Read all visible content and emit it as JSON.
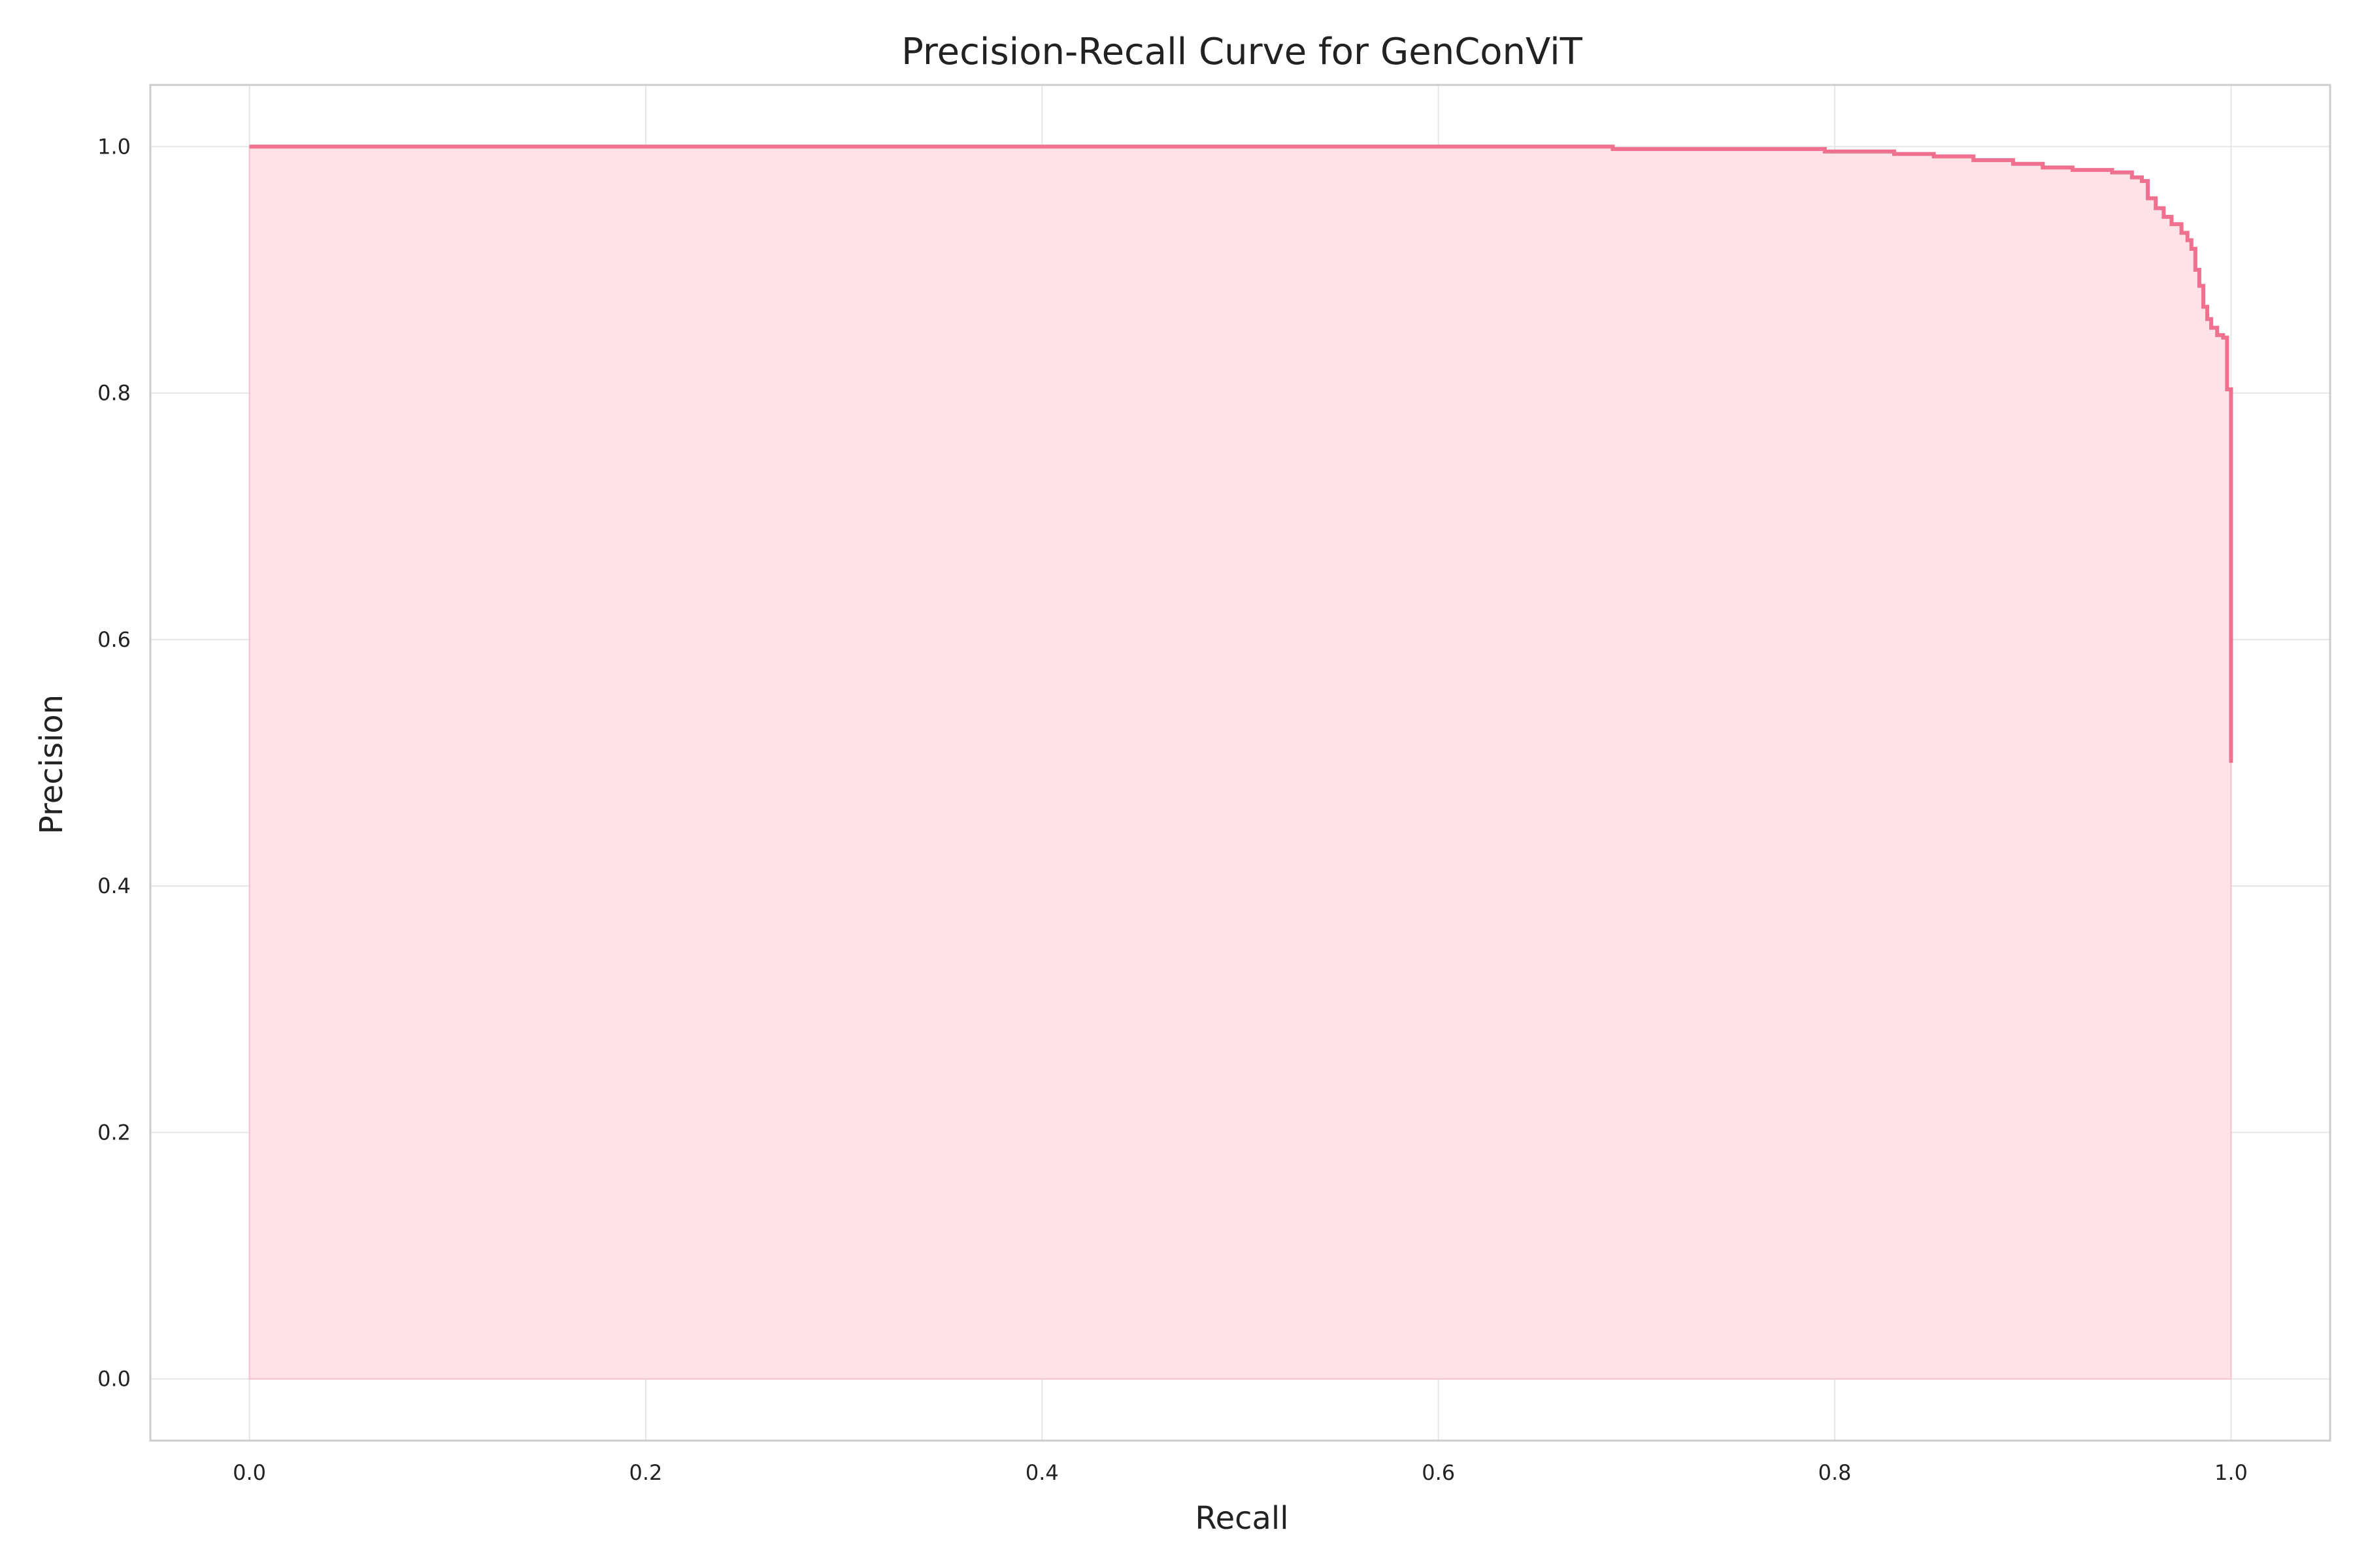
{
  "chart_data": {
    "type": "area",
    "title": "Precision-Recall Curve for GenConViT",
    "xlabel": "Recall",
    "ylabel": "Precision",
    "xlim": [
      -0.05,
      1.05
    ],
    "ylim": [
      -0.05,
      1.05
    ],
    "x_ticks": [
      0.0,
      0.2,
      0.4,
      0.6,
      0.8,
      1.0
    ],
    "x_tick_labels": [
      "0.0",
      "0.2",
      "0.4",
      "0.6",
      "0.8",
      "1.0"
    ],
    "y_ticks": [
      0.0,
      0.2,
      0.4,
      0.6,
      0.8,
      1.0
    ],
    "y_tick_labels": [
      "0.0",
      "0.2",
      "0.4",
      "0.6",
      "0.8",
      "1.0"
    ],
    "grid": true,
    "step": "post",
    "line_color": "#f07090",
    "fill_color": "#fde0e6",
    "series": [
      {
        "recall": [
          0.0,
          0.688,
          0.795,
          0.83,
          0.85,
          0.87,
          0.89,
          0.905,
          0.92,
          0.94,
          0.95,
          0.955,
          0.958,
          0.962,
          0.966,
          0.97,
          0.975,
          0.978,
          0.98,
          0.982,
          0.984,
          0.986,
          0.988,
          0.99,
          0.993,
          0.996,
          0.998,
          1.0,
          1.0
        ],
        "precision": [
          1.0,
          0.998,
          0.996,
          0.994,
          0.992,
          0.989,
          0.986,
          0.983,
          0.981,
          0.979,
          0.975,
          0.972,
          0.958,
          0.95,
          0.943,
          0.937,
          0.93,
          0.924,
          0.917,
          0.9,
          0.887,
          0.87,
          0.86,
          0.853,
          0.847,
          0.845,
          0.803,
          0.8,
          0.5
        ]
      }
    ]
  }
}
